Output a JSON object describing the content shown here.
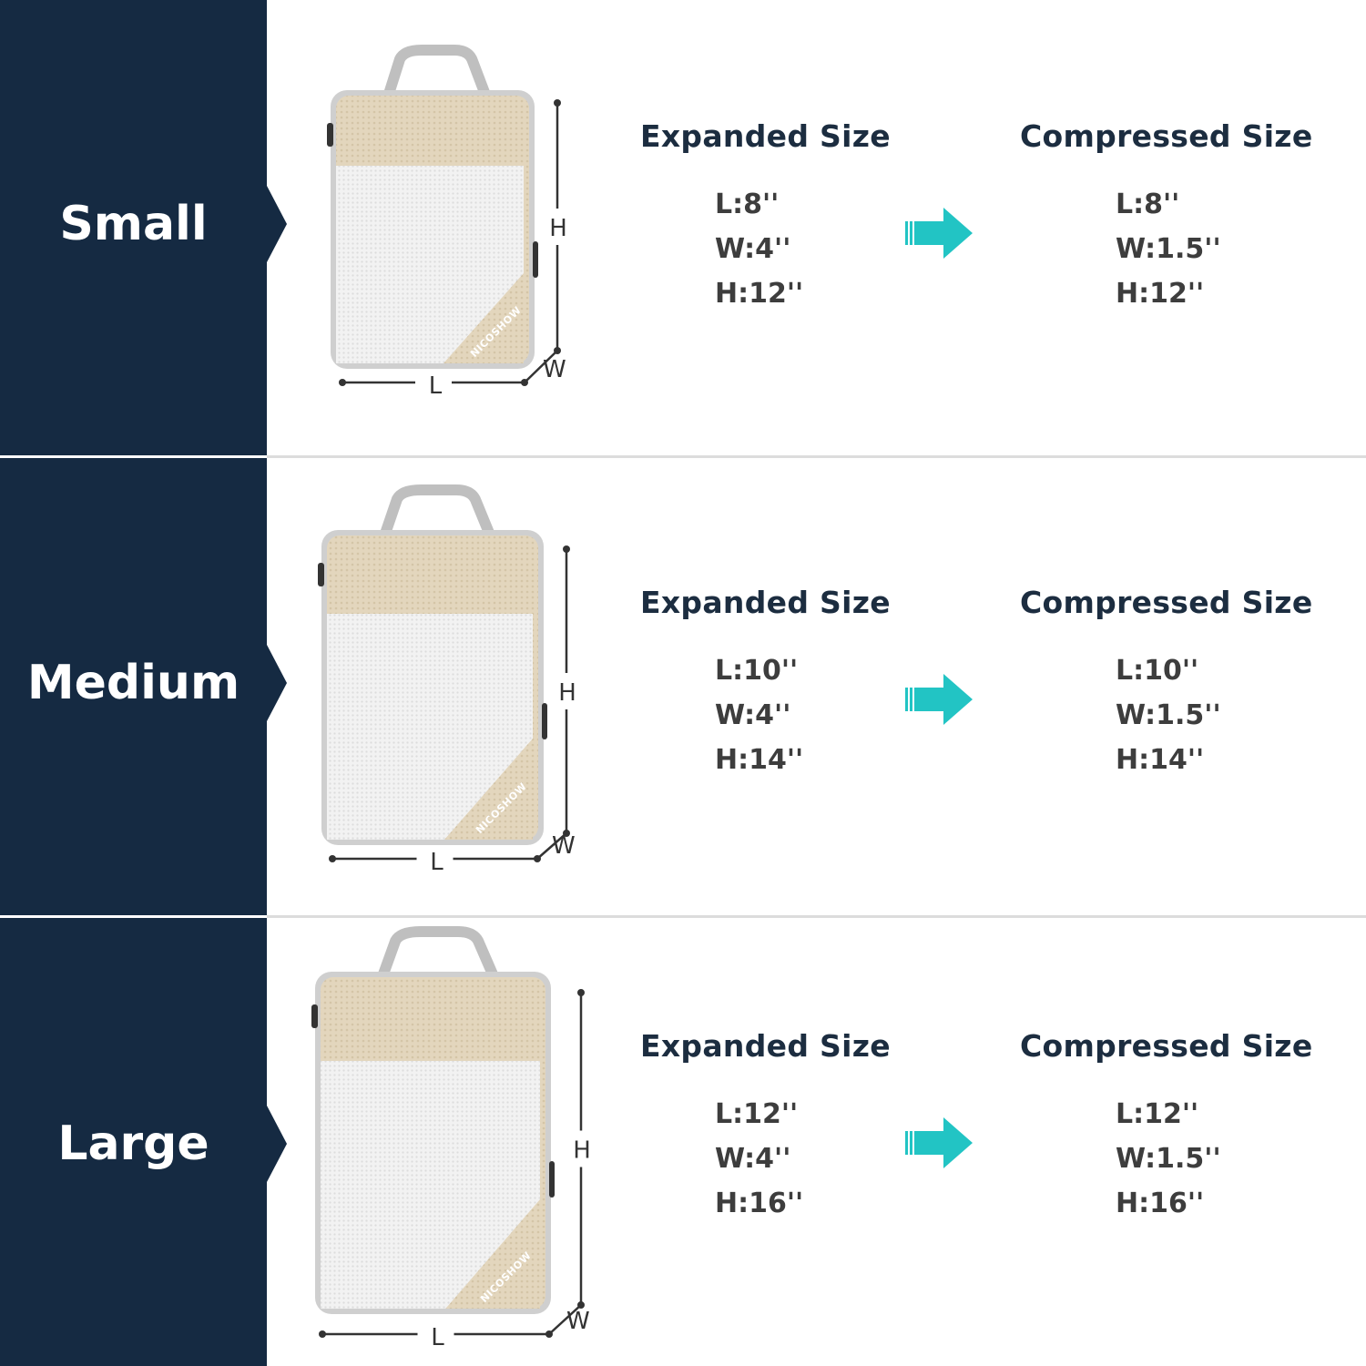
{
  "brand": "NICOSHOW",
  "colors": {
    "panel": "#152a42",
    "arrow": "#22c4c4",
    "bag_beige": "#e3d6bd",
    "heading": "#1c2d40"
  },
  "rows": [
    {
      "size": "Small",
      "expanded": {
        "title": "Expanded Size",
        "L": "L:8''",
        "W": "W:4''",
        "H": "H:12''"
      },
      "compressed": {
        "title": "Compressed Size",
        "L": "L:8''",
        "W": "W:1.5''",
        "H": "H:12''"
      },
      "dims": {
        "L": "L",
        "W": "W",
        "H": "H"
      }
    },
    {
      "size": "Medium",
      "expanded": {
        "title": "Expanded Size",
        "L": "L:10''",
        "W": "W:4''",
        "H": "H:14''"
      },
      "compressed": {
        "title": "Compressed Size",
        "L": "L:10''",
        "W": "W:1.5''",
        "H": "H:14''"
      },
      "dims": {
        "L": "L",
        "W": "W",
        "H": "H"
      }
    },
    {
      "size": "Large",
      "expanded": {
        "title": "Expanded Size",
        "L": "L:12''",
        "W": "W:4''",
        "H": "H:16''"
      },
      "compressed": {
        "title": "Compressed Size",
        "L": "L:12''",
        "W": "W:1.5''",
        "H": "H:16''"
      },
      "dims": {
        "L": "L",
        "W": "W",
        "H": "H"
      }
    }
  ],
  "icons": {
    "arrow": "arrow-right-icon",
    "bag": "packing-cube-image"
  }
}
